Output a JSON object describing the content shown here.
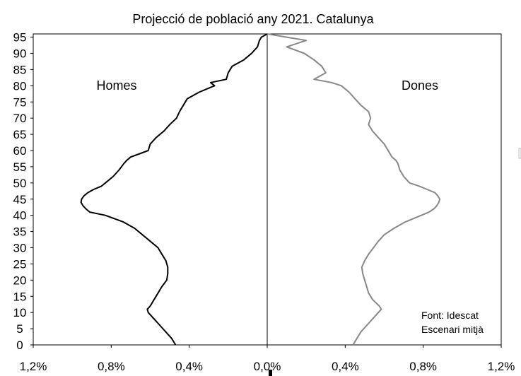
{
  "chart_data": {
    "type": "line",
    "title": "Projecció de població any 2021. Catalunya",
    "xlabel": "",
    "ylabel": "",
    "x_ticks": [
      "1,2%",
      "0,8%",
      "0,4%",
      "0,0%",
      "0,4%",
      "0,8%",
      "1,2%"
    ],
    "y_ticks": [
      "0",
      "5",
      "10",
      "15",
      "20",
      "25",
      "30",
      "35",
      "40",
      "45",
      "50",
      "55",
      "60",
      "65",
      "70",
      "75",
      "80",
      "85",
      "90",
      "95"
    ],
    "xlim": [
      -1.2,
      1.2
    ],
    "ylim": [
      0,
      96
    ],
    "grid": false,
    "series": [
      {
        "name": "Homes",
        "color": "#000000",
        "side": "left",
        "points": [
          [
            0,
            0.47
          ],
          [
            2,
            0.49
          ],
          [
            4,
            0.52
          ],
          [
            6,
            0.55
          ],
          [
            8,
            0.58
          ],
          [
            10,
            0.61
          ],
          [
            11,
            0.615
          ],
          [
            12,
            0.6
          ],
          [
            14,
            0.58
          ],
          [
            16,
            0.56
          ],
          [
            18,
            0.54
          ],
          [
            20,
            0.515
          ],
          [
            22,
            0.51
          ],
          [
            24,
            0.51
          ],
          [
            26,
            0.52
          ],
          [
            28,
            0.54
          ],
          [
            30,
            0.56
          ],
          [
            32,
            0.6
          ],
          [
            34,
            0.64
          ],
          [
            36,
            0.68
          ],
          [
            38,
            0.74
          ],
          [
            40,
            0.83
          ],
          [
            41,
            0.91
          ],
          [
            42,
            0.93
          ],
          [
            43,
            0.945
          ],
          [
            44,
            0.955
          ],
          [
            45,
            0.952
          ],
          [
            46,
            0.94
          ],
          [
            47,
            0.92
          ],
          [
            48,
            0.89
          ],
          [
            49,
            0.85
          ],
          [
            50,
            0.83
          ],
          [
            52,
            0.79
          ],
          [
            54,
            0.76
          ],
          [
            56,
            0.735
          ],
          [
            57,
            0.72
          ],
          [
            58,
            0.7
          ],
          [
            60,
            0.61
          ],
          [
            62,
            0.6
          ],
          [
            64,
            0.57
          ],
          [
            66,
            0.53
          ],
          [
            68,
            0.5
          ],
          [
            70,
            0.465
          ],
          [
            72,
            0.45
          ],
          [
            74,
            0.43
          ],
          [
            76,
            0.41
          ],
          [
            78,
            0.35
          ],
          [
            80,
            0.27
          ],
          [
            81,
            0.29
          ],
          [
            82,
            0.21
          ],
          [
            84,
            0.2
          ],
          [
            86,
            0.18
          ],
          [
            88,
            0.12
          ],
          [
            90,
            0.08
          ],
          [
            92,
            0.05
          ],
          [
            94,
            0.04
          ],
          [
            95,
            0.03
          ],
          [
            96,
            0.0
          ]
        ]
      },
      {
        "name": "Dones",
        "color": "#888888",
        "side": "right",
        "points": [
          [
            0,
            0.44
          ],
          [
            2,
            0.46
          ],
          [
            4,
            0.48
          ],
          [
            6,
            0.51
          ],
          [
            8,
            0.54
          ],
          [
            10,
            0.57
          ],
          [
            11,
            0.585
          ],
          [
            12,
            0.575
          ],
          [
            14,
            0.54
          ],
          [
            16,
            0.52
          ],
          [
            18,
            0.51
          ],
          [
            20,
            0.5
          ],
          [
            22,
            0.49
          ],
          [
            24,
            0.485
          ],
          [
            26,
            0.5
          ],
          [
            28,
            0.52
          ],
          [
            30,
            0.545
          ],
          [
            32,
            0.57
          ],
          [
            34,
            0.6
          ],
          [
            36,
            0.65
          ],
          [
            38,
            0.71
          ],
          [
            40,
            0.79
          ],
          [
            41,
            0.83
          ],
          [
            42,
            0.855
          ],
          [
            43,
            0.87
          ],
          [
            44,
            0.88
          ],
          [
            45,
            0.885
          ],
          [
            46,
            0.875
          ],
          [
            47,
            0.86
          ],
          [
            48,
            0.82
          ],
          [
            49,
            0.78
          ],
          [
            50,
            0.73
          ],
          [
            52,
            0.7
          ],
          [
            54,
            0.68
          ],
          [
            56,
            0.67
          ],
          [
            57,
            0.66
          ],
          [
            58,
            0.64
          ],
          [
            60,
            0.62
          ],
          [
            62,
            0.6
          ],
          [
            64,
            0.57
          ],
          [
            66,
            0.54
          ],
          [
            68,
            0.52
          ],
          [
            70,
            0.53
          ],
          [
            72,
            0.52
          ],
          [
            74,
            0.48
          ],
          [
            76,
            0.45
          ],
          [
            78,
            0.42
          ],
          [
            80,
            0.38
          ],
          [
            81,
            0.33
          ],
          [
            82,
            0.24
          ],
          [
            84,
            0.3
          ],
          [
            86,
            0.28
          ],
          [
            88,
            0.24
          ],
          [
            90,
            0.19
          ],
          [
            92,
            0.1
          ],
          [
            94,
            0.2
          ],
          [
            95,
            0.1
          ],
          [
            96,
            0.0
          ]
        ]
      }
    ],
    "annotations": [
      "Font: Idescat",
      "Escenari mitjà"
    ]
  }
}
